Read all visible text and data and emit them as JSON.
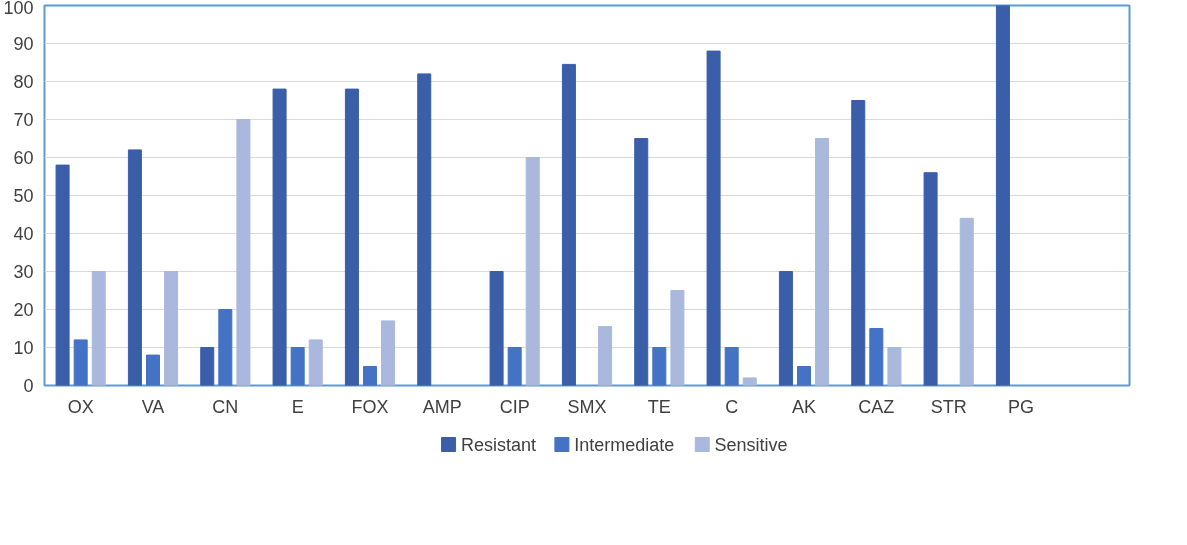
{
  "chart_data": {
    "type": "bar",
    "categories": [
      "OX",
      "VA",
      "CN",
      "E",
      "FOX",
      "AMP",
      "CIP",
      "SMX",
      "TE",
      "C",
      "AK",
      "CAZ",
      "STR",
      "PG",
      null
    ],
    "series": [
      {
        "name": "Resistant",
        "color": "#3a5ea8",
        "values": [
          58,
          62,
          10,
          78,
          78,
          82,
          30,
          84.5,
          65,
          88,
          30,
          75,
          56,
          100,
          null
        ]
      },
      {
        "name": "Intermediate",
        "color": "#4472c4",
        "values": [
          12,
          8,
          20,
          10,
          5,
          null,
          10,
          null,
          10,
          10,
          5,
          15,
          null,
          null,
          null
        ]
      },
      {
        "name": "Sensitive",
        "color": "#a9b8dc",
        "values": [
          30,
          30,
          70,
          12,
          17,
          null,
          60,
          15.5,
          25,
          2,
          65,
          10,
          44,
          null,
          null
        ]
      }
    ],
    "ylim": [
      0,
      100
    ],
    "yticks": [
      0,
      10,
      20,
      30,
      40,
      50,
      60,
      70,
      80,
      90,
      100
    ],
    "grid": "y",
    "legend": "bottom"
  }
}
